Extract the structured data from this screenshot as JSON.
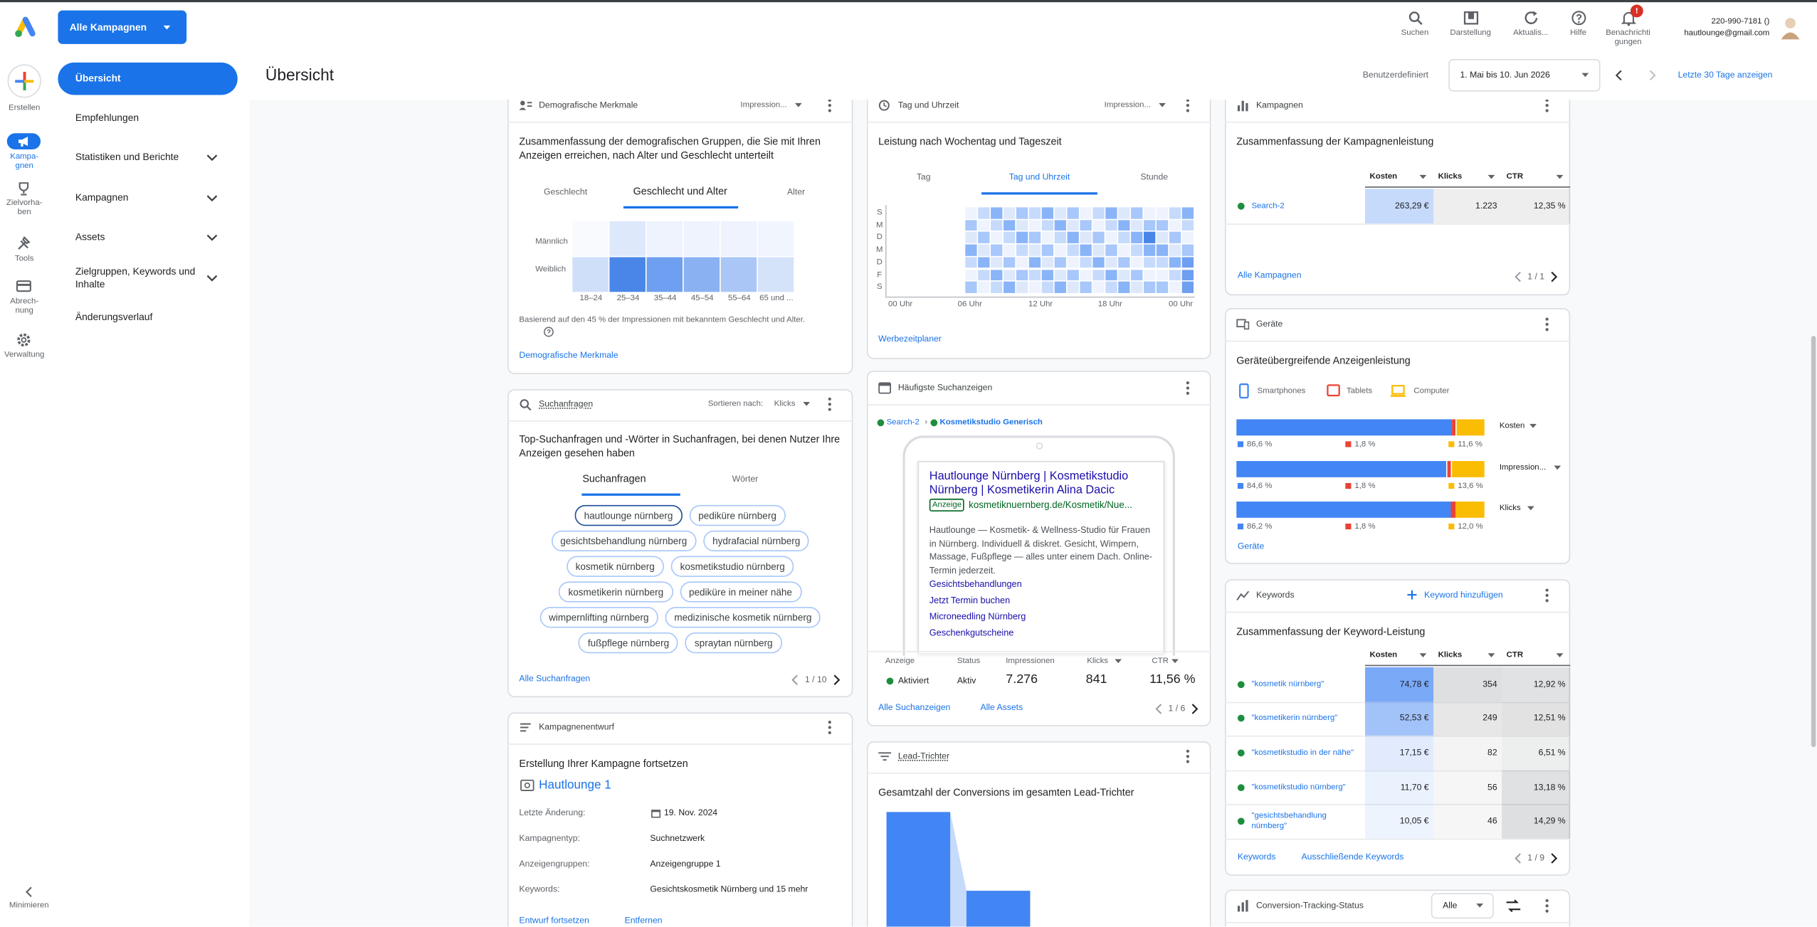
{
  "topbar": {
    "campaign_select": "Alle Kampagnen",
    "actions": [
      "Suchen",
      "Darstellung",
      "Aktualis...",
      "Hilfe",
      "Benachrichti\ngungen"
    ],
    "notification_badge": "!",
    "account_id": "220-990-7181 ()",
    "account_email": "hautlounge@gmail.com"
  },
  "rail": {
    "items": [
      "Erstellen",
      "Kampa-\ngnen",
      "Zielvorha-\nben",
      "Tools",
      "Abrech-\nnung",
      "Verwaltung"
    ],
    "minimize": "Minimieren"
  },
  "nav": [
    "Übersicht",
    "Empfehlungen",
    "Statistiken und Berichte",
    "Kampagnen",
    "Assets",
    "Zielgruppen, Keywords und Inhalte",
    "Änderungsverlauf"
  ],
  "header": {
    "title": "Übersicht",
    "range_type": "Benutzerdefiniert",
    "range": "1. Mai bis 10. Jun 2026",
    "last30": "Letzte 30 Tage anzeigen"
  },
  "demographics": {
    "title": "Demografische Merkmale",
    "metric": "Impression...",
    "description": "Zusammenfassung der demografischen Gruppen, die Sie mit Ihren Anzeigen erreichen, nach Alter und Geschlecht unterteilt",
    "tabs": [
      "Geschlecht",
      "Geschlecht und Alter",
      "Alter"
    ],
    "rows": [
      "Männlich",
      "Weiblich"
    ],
    "columns": [
      "18–24",
      "25–34",
      "35–44",
      "45–54",
      "55–64",
      "65 und ..."
    ],
    "footnote": "Basierend auf den 45 % der Impressionen mit bekanntem Geschlecht und Alter.",
    "link": "Demografische Merkmale"
  },
  "search_terms": {
    "title": "Suchanfragen",
    "sort_label": "Sortieren nach:",
    "sort_value": "Klicks",
    "description": "Top-Suchanfragen und -Wörter in Suchanfragen, bei denen Nutzer Ihre Anzeigen gesehen haben",
    "tabs": [
      "Suchanfragen",
      "Wörter"
    ],
    "chips": [
      [
        "hautlounge nürnberg",
        "pediküre nürnberg"
      ],
      [
        "gesichtsbehandlung nürnberg",
        "hydrafacial nürnberg"
      ],
      [
        "kosmetik nürnberg",
        "kosmetikstudio nürnberg"
      ],
      [
        "kosmetikerin nürnberg",
        "pediküre in meiner nähe"
      ],
      [
        "wimpernlifting nürnberg",
        "medizinische kosmetik nürnberg"
      ],
      [
        "fußpflege nürnberg",
        "spraytan nürnberg"
      ]
    ],
    "link": "Alle Suchanfragen",
    "pager": "1 / 10"
  },
  "draft": {
    "title": "Kampagnenentwurf",
    "heading": "Erstellung Ihrer Kampagne fortsetzen",
    "name": "Hautlounge 1",
    "details": [
      [
        "Letzte Änderung:",
        "19. Nov. 2024"
      ],
      [
        "Kampagnentyp:",
        "Suchnetzwerk"
      ],
      [
        "Anzeigengruppen:",
        "Anzeigengruppe 1"
      ],
      [
        "Keywords:",
        "Gesichtskosmetik Nürnberg und 15 mehr"
      ]
    ],
    "links": [
      "Entwurf fortsetzen",
      "Entfernen"
    ]
  },
  "dayparting": {
    "title": "Tag und Uhrzeit",
    "metric": "Impression...",
    "description": "Leistung nach Wochentag und Tageszeit",
    "tabs": [
      "Tag",
      "Tag und Uhrzeit",
      "Stunde"
    ],
    "days": [
      "S",
      "M",
      "D",
      "M",
      "D",
      "F",
      "S"
    ],
    "hours": [
      "00 Uhr",
      "06 Uhr",
      "12 Uhr",
      "18 Uhr",
      "00 Uhr"
    ],
    "link": "Werbezeitplaner"
  },
  "top_ads": {
    "title": "Häufigste Suchanzeigen",
    "campaign": "Search-2",
    "separator": "›",
    "ad_group": "Kosmetikstudio Generisch",
    "ad_title": "Hautlounge Nürnberg | Kosmetikstudio Nürnberg | Kosmetikerin Alina Dacic",
    "ad_badge": "Anzeige",
    "ad_url": "kosmetiknuernberg.de/Kosmetik/Nue...",
    "ad_description": "Hautlounge — Kosmetik- & Wellness-Studio für Frauen in Nürnberg. Individuell & diskret. Gesicht, Wimpern, Massage, Fußpflege — alles unter einem Dach. Online-Termin jederzeit.",
    "sitelinks": [
      "Gesichtsbehandlungen",
      "Jetzt Termin buchen",
      "Microneedling Nürnberg",
      "Geschenkgutscheine"
    ],
    "columns": [
      "Anzeige",
      "Status",
      "Impressionen",
      "Klicks",
      "CTR"
    ],
    "row": [
      "Aktiviert",
      "Aktiv",
      "7.276",
      "841",
      "11,56 %"
    ],
    "links": [
      "Alle Suchanzeigen",
      "Alle Assets"
    ],
    "pager": "1 / 6"
  },
  "lead_funnel": {
    "title": "Lead-Trichter",
    "description": "Gesamtzahl der Conversions im gesamten Lead-Trichter"
  },
  "campaigns": {
    "title": "Kampagnen",
    "description": "Zusammenfassung der Kampagnenleistung",
    "columns": [
      "Kosten",
      "Klicks",
      "CTR"
    ],
    "rows": [
      {
        "name": "Search-2",
        "cost": {
          "value": 263.29,
          "label": "263,29 €"
        },
        "clicks": {
          "value": 1223,
          "label": "1.223"
        },
        "ctr": {
          "value": 12.35,
          "label": "12,35 %"
        }
      }
    ],
    "link": "Alle Kampagnen",
    "pager": "1 / 1"
  },
  "devices": {
    "title": "Geräte",
    "description": "Geräteübergreifende Anzeigenleistung",
    "legend": [
      "Smartphones",
      "Tablets",
      "Computer"
    ],
    "colors": [
      "#4285f4",
      "#ea4335",
      "#fbbc04"
    ],
    "metrics": [
      {
        "name": "Kosten",
        "shares": [
          {
            "value": 86.6,
            "label": "86,6 %"
          },
          {
            "value": 1.8,
            "label": "1,8 %"
          },
          {
            "value": 11.6,
            "label": "11,6 %"
          }
        ]
      },
      {
        "name": "Impression...",
        "shares": [
          {
            "value": 84.6,
            "label": "84,6 %"
          },
          {
            "value": 1.8,
            "label": "1,8 %"
          },
          {
            "value": 13.6,
            "label": "13,6 %"
          }
        ]
      },
      {
        "name": "Klicks",
        "shares": [
          {
            "value": 86.2,
            "label": "86,2 %"
          },
          {
            "value": 1.8,
            "label": "1,8 %"
          },
          {
            "value": 12.0,
            "label": "12,0 %"
          }
        ]
      }
    ],
    "link": "Geräte"
  },
  "keywords": {
    "title": "Keywords",
    "add": "Keyword hinzufügen",
    "description": "Zusammenfassung der Keyword-Leistung",
    "columns": [
      "Kosten",
      "Klicks",
      "CTR"
    ],
    "rows": [
      {
        "name": "\"kosmetik nürnberg\"",
        "cost": {
          "value": 74.78,
          "label": "74,78 €"
        },
        "clicks": {
          "value": 354,
          "label": "354"
        },
        "ctr": {
          "value": 12.92,
          "label": "12,92 %"
        }
      },
      {
        "name": "\"kosmetikerin nürnberg\"",
        "cost": {
          "value": 52.53,
          "label": "52,53 €"
        },
        "clicks": {
          "value": 249,
          "label": "249"
        },
        "ctr": {
          "value": 12.51,
          "label": "12,51 %"
        }
      },
      {
        "name": "\"kosmetikstudio in der nähe\"",
        "cost": {
          "value": 17.15,
          "label": "17,15 €"
        },
        "clicks": {
          "value": 82,
          "label": "82"
        },
        "ctr": {
          "value": 6.51,
          "label": "6,51 %"
        }
      },
      {
        "name": "\"kosmetikstudio nürnberg\"",
        "cost": {
          "value": 11.7,
          "label": "11,70 €"
        },
        "clicks": {
          "value": 56,
          "label": "56"
        },
        "ctr": {
          "value": 13.18,
          "label": "13,18 %"
        }
      },
      {
        "name": "\"gesichtsbehandlung nürnberg\"",
        "cost": {
          "value": 10.05,
          "label": "10,05 €"
        },
        "clicks": {
          "value": 46,
          "label": "46"
        },
        "ctr": {
          "value": 14.29,
          "label": "14,29 %"
        }
      }
    ],
    "links": [
      "Keywords",
      "Ausschließende Keywords"
    ],
    "pager": "1 / 9"
  },
  "conversion_tracking": {
    "title": "Conversion-Tracking-Status",
    "filter": "Alle"
  }
}
